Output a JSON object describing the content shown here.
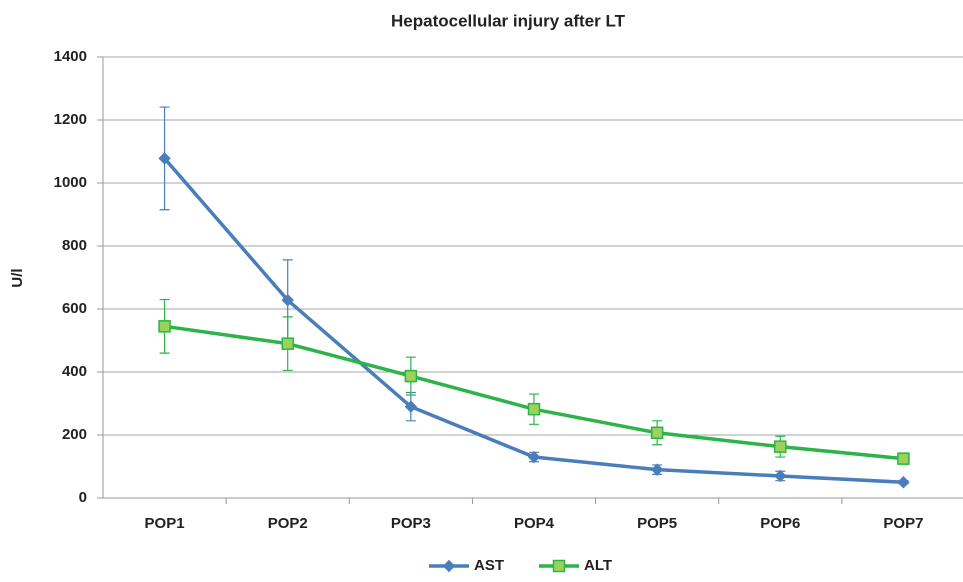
{
  "chart_data": {
    "type": "line",
    "title": "Hepatocellular injury after LT",
    "y_label": "U/l",
    "categories": [
      "POP1",
      "POP2",
      "POP3",
      "POP4",
      "POP5",
      "POP6",
      "POP7"
    ],
    "series": [
      {
        "name": "AST",
        "color": "#4a7ebb",
        "marker": "diamond",
        "marker_color": "#4a7ebb",
        "values": [
          1078,
          628,
          290,
          130,
          90,
          70,
          50
        ],
        "errors": [
          163,
          128,
          45,
          15,
          15,
          15,
          5
        ]
      },
      {
        "name": "ALT",
        "color": "#2db34a",
        "marker": "square",
        "marker_color": "#9bd35a",
        "values": [
          545,
          490,
          387,
          282,
          207,
          163,
          125
        ],
        "errors": [
          85,
          85,
          60,
          48,
          38,
          33,
          15
        ]
      }
    ],
    "ylim": [
      0,
      1400
    ],
    "yticks": [
      0,
      200,
      400,
      600,
      800,
      1000,
      1200,
      1400
    ],
    "grid": true,
    "legend": "bottom"
  }
}
